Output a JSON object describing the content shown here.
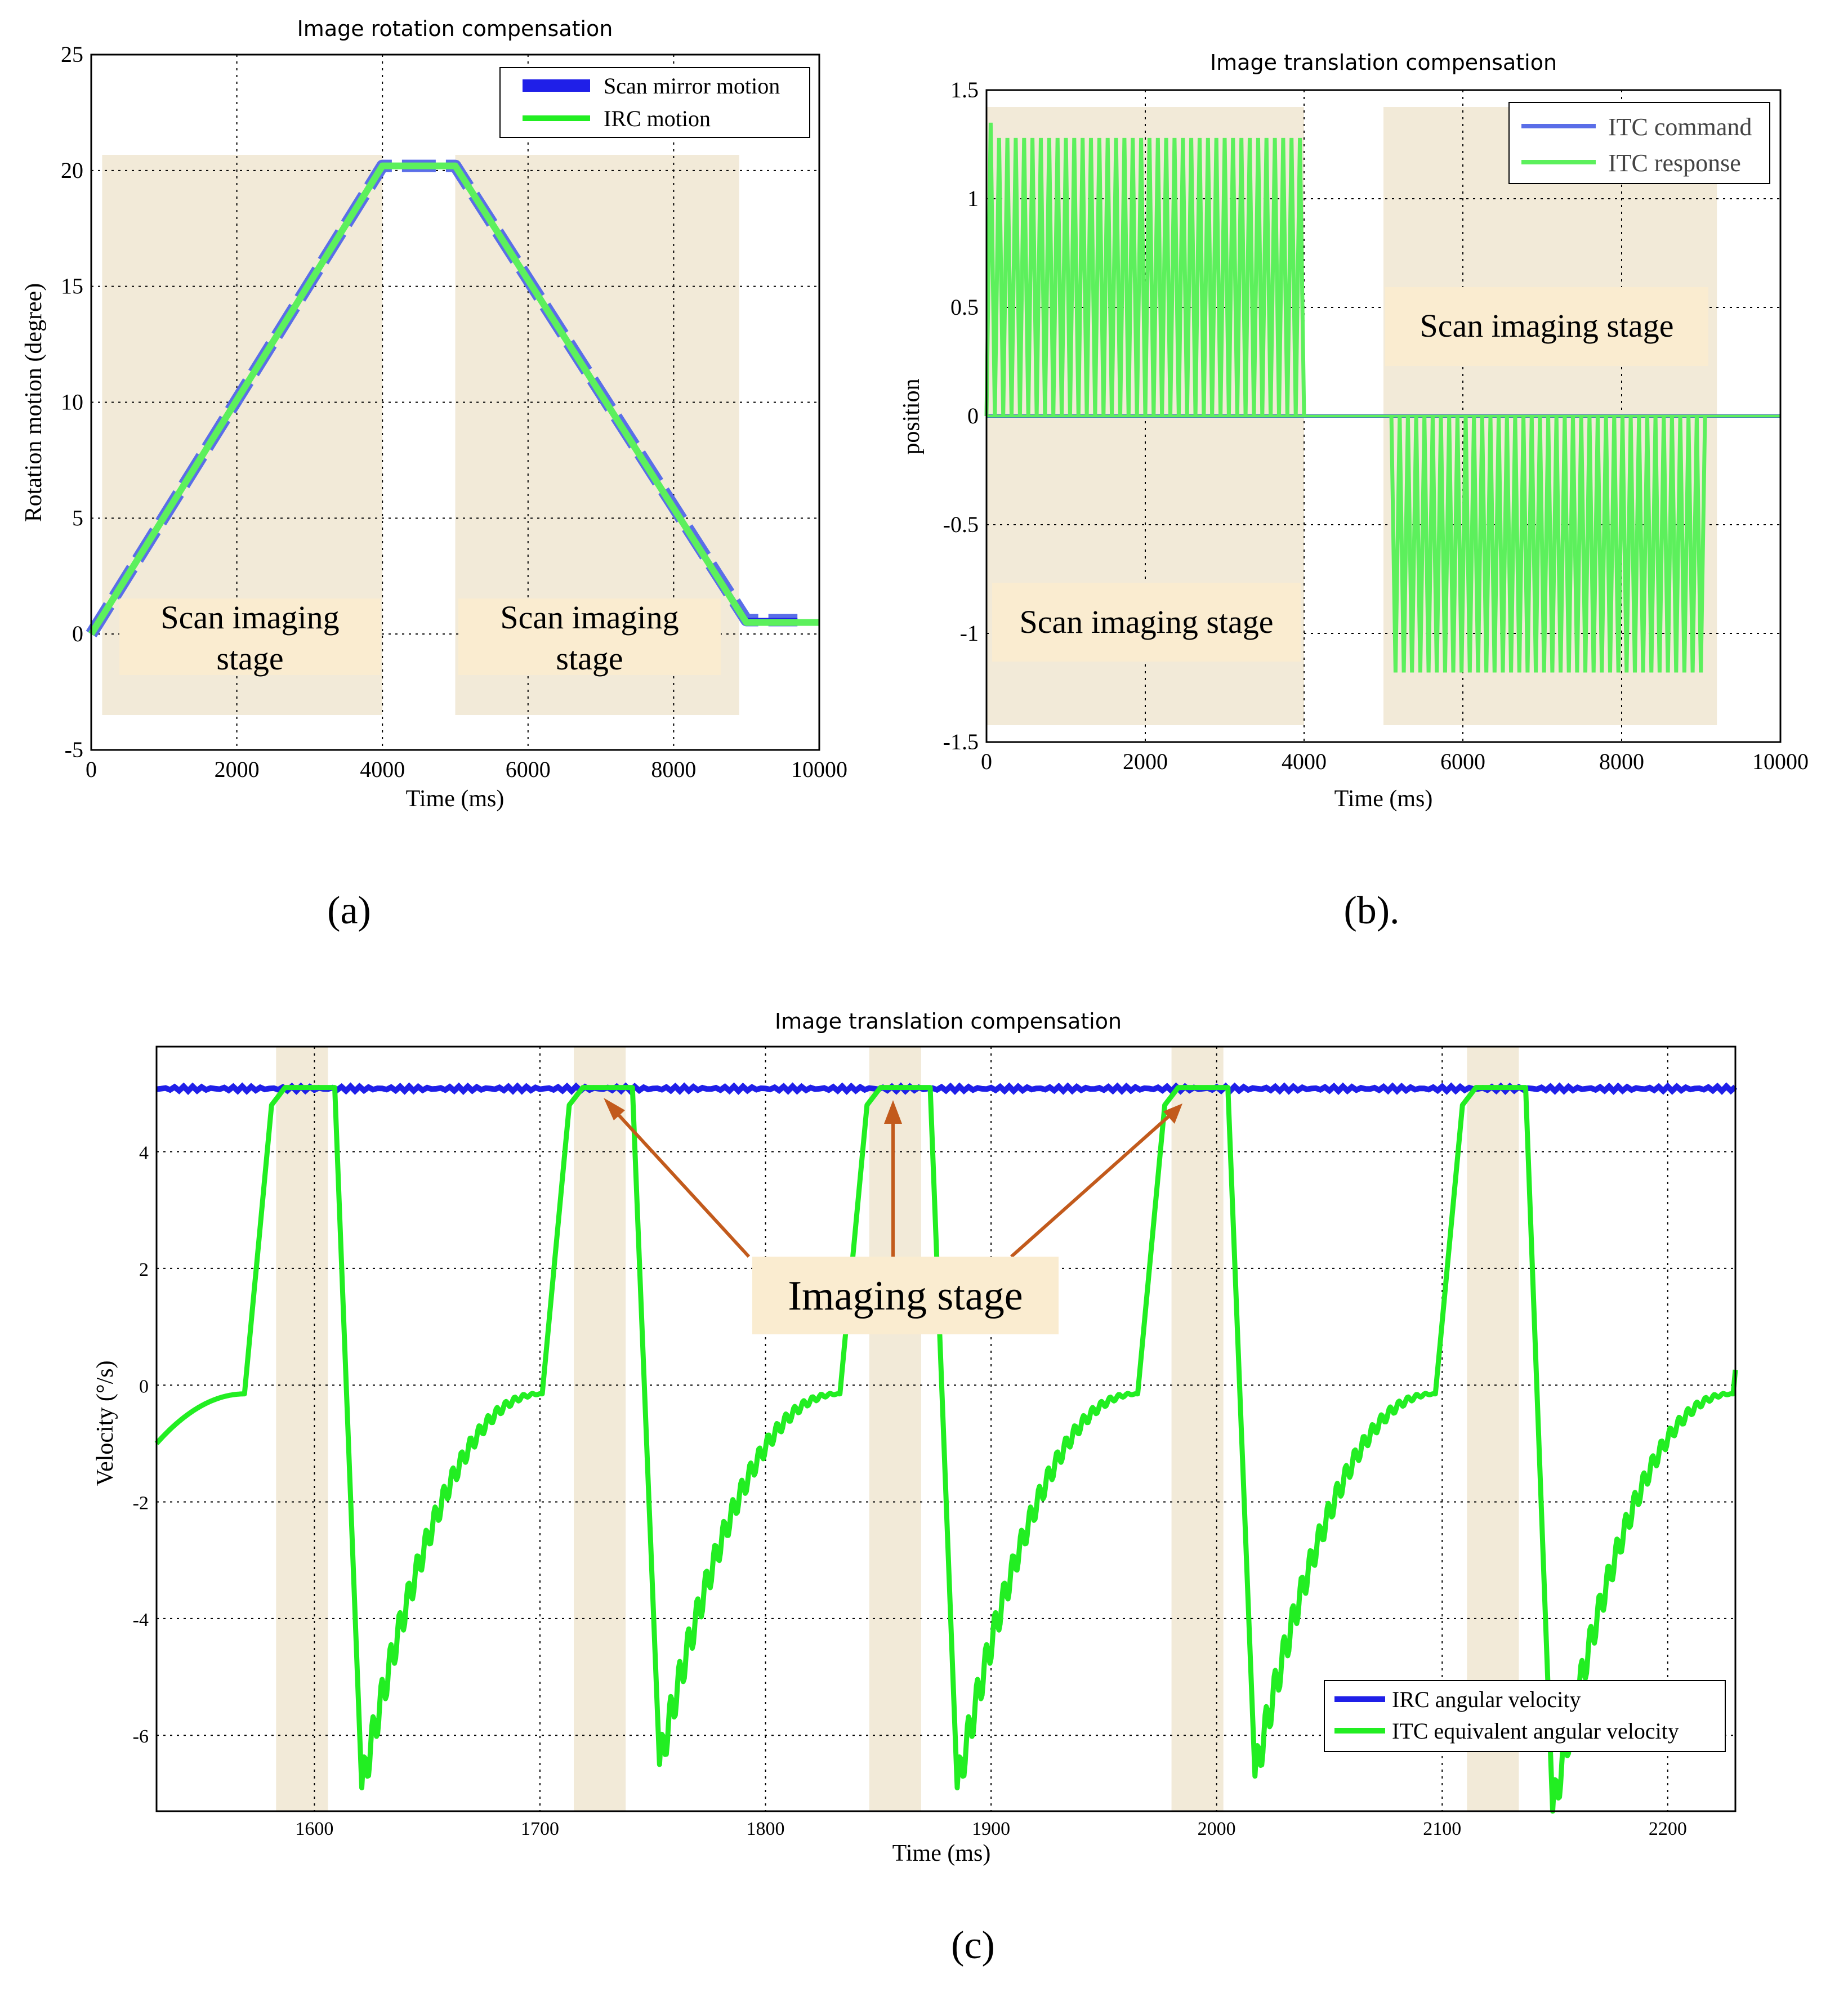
{
  "colors": {
    "blue": "#1f1fe8",
    "blue_light": "#5a6ee8",
    "green": "#22ee22",
    "green_light": "#5cf05c",
    "shade": "#f2ead8",
    "label_box": "#faecd0",
    "arrow": "#c25a1c"
  },
  "panel_labels": {
    "a": "(a)",
    "b": "(b).",
    "c": "(c)"
  },
  "chart_data": [
    {
      "id": "a",
      "type": "line",
      "title": "Image rotation compensation",
      "xlabel": "Time (ms)",
      "ylabel": "Rotation motion (degree)",
      "xlim": [
        0,
        10000
      ],
      "ylim": [
        -5,
        25
      ],
      "xticks": [
        0,
        2000,
        4000,
        6000,
        8000,
        10000
      ],
      "yticks": [
        -5,
        0,
        5,
        10,
        15,
        20,
        25
      ],
      "grid": true,
      "legend_position": "top-right",
      "series": [
        {
          "name": "Scan mirror motion",
          "x": [
            0,
            4000,
            5000,
            9000,
            9700
          ],
          "y": [
            0,
            20.2,
            20.2,
            0.6,
            0.6
          ]
        },
        {
          "name": "IRC motion",
          "x": [
            0,
            4000,
            5000,
            9000,
            10000
          ],
          "y": [
            0,
            20.2,
            20.2,
            0.5,
            0.5
          ]
        }
      ],
      "shaded_regions": [
        [
          150,
          4000
        ],
        [
          5000,
          8900
        ]
      ],
      "annotations": [
        {
          "line1": "Scan imaging",
          "line2": "stage"
        },
        {
          "line1": "Scan imaging",
          "line2": "stage"
        }
      ]
    },
    {
      "id": "b",
      "type": "line",
      "title": "Image translation compensation",
      "xlabel": "Time (ms)",
      "ylabel": "position",
      "xlim": [
        0,
        10000
      ],
      "ylim": [
        -1.5,
        1.5
      ],
      "xticks": [
        0,
        2000,
        4000,
        6000,
        8000,
        10000
      ],
      "yticks": [
        -1.5,
        -1,
        -0.5,
        0,
        0.5,
        1,
        1.5
      ],
      "grid": true,
      "legend_position": "top-right",
      "series": [
        {
          "name": "ITC command",
          "segments": [
            {
              "x_start": 0,
              "x_end": 4000,
              "cycles": 38,
              "min": 0,
              "max": 1.2
            },
            {
              "x_start": 5100,
              "x_end": 9050,
              "cycles": 38,
              "min": -1.17,
              "max": 0
            }
          ]
        },
        {
          "name": "ITC response",
          "segments": [
            {
              "x_start": 0,
              "x_end": 4000,
              "cycles": 38,
              "min": 0,
              "max": 1.28,
              "first_peak": 1.35
            },
            {
              "x_start": 5100,
              "x_end": 9050,
              "cycles": 38,
              "min": -1.18,
              "max": 0
            }
          ]
        }
      ],
      "shaded_regions": [
        [
          0,
          4000
        ],
        [
          5000,
          9200
        ]
      ],
      "annotations": [
        {
          "text": "Scan imaging stage"
        },
        {
          "text": "Scan imaging stage"
        }
      ]
    },
    {
      "id": "c",
      "type": "line",
      "title": "Image translation compensation",
      "xlabel": "Time (ms)",
      "ylabel": "Velocity (°/s)",
      "xlim": [
        1530,
        2230
      ],
      "ylim": [
        -7.3,
        5.8
      ],
      "xticks": [
        1600,
        1700,
        1800,
        1900,
        2000,
        2100,
        2200
      ],
      "yticks": [
        -6,
        -4,
        -2,
        0,
        2,
        4
      ],
      "grid": true,
      "legend_position": "bottom-right",
      "series": [
        {
          "name": "IRC angular velocity",
          "constant_y": 5.08
        },
        {
          "name": "ITC equivalent angular velocity",
          "period_ms": 132,
          "first_rise_ms": 1569,
          "plateau": 5.1,
          "trough_values": [
            -6.9,
            -6.5,
            -6.9,
            -6.7,
            -7.3
          ]
        }
      ],
      "shaded_regions": [
        [
          1583,
          1606
        ],
        [
          1715,
          1738
        ],
        [
          1846,
          1869
        ],
        [
          1980,
          2003
        ],
        [
          2111,
          2134
        ]
      ],
      "annotations": [
        {
          "text": "Imaging stage"
        }
      ]
    }
  ]
}
